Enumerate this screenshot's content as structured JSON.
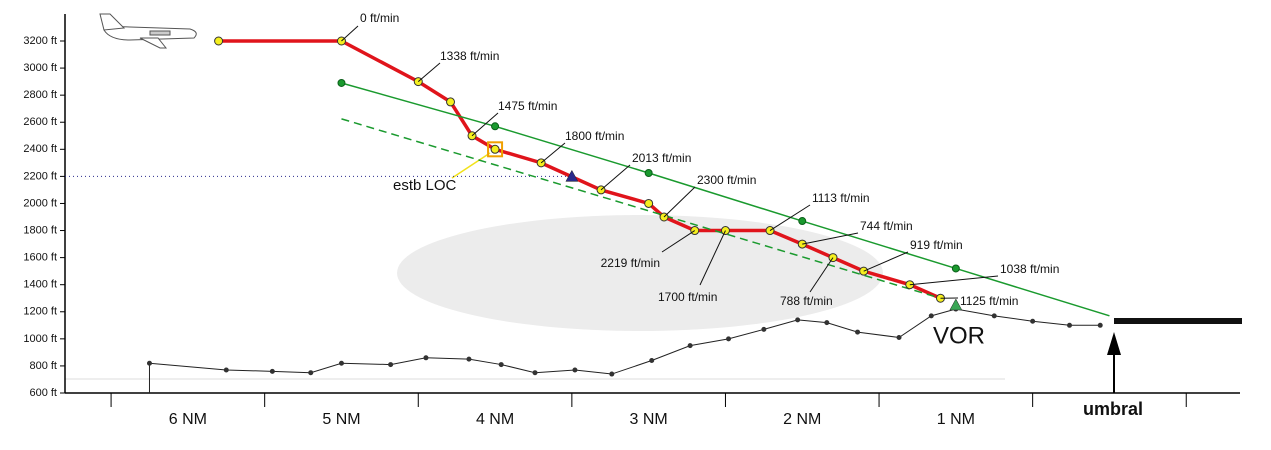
{
  "chart_data": {
    "type": "line",
    "xlim": [
      6.8,
      -0.85
    ],
    "ylim": [
      600,
      3200
    ],
    "yticks": [
      {
        "value": 600,
        "label": "600 ft"
      },
      {
        "value": 800,
        "label": "800 ft"
      },
      {
        "value": 1000,
        "label": "1000 ft"
      },
      {
        "value": 1200,
        "label": "1200 ft"
      },
      {
        "value": 1400,
        "label": "1400 ft"
      },
      {
        "value": 1600,
        "label": "1600 ft"
      },
      {
        "value": 1800,
        "label": "1800 ft"
      },
      {
        "value": 2000,
        "label": "2000 ft"
      },
      {
        "value": 2200,
        "label": "2200 ft"
      },
      {
        "value": 2400,
        "label": "2400 ft"
      },
      {
        "value": 2600,
        "label": "2600 ft"
      },
      {
        "value": 2800,
        "label": "2800 ft"
      },
      {
        "value": 3000,
        "label": "3000 ft"
      },
      {
        "value": 3200,
        "label": "3200 ft"
      }
    ],
    "xticks": [
      {
        "value": 6,
        "label": "6 NM"
      },
      {
        "value": 5,
        "label": "5 NM"
      },
      {
        "value": 4,
        "label": "4 NM"
      },
      {
        "value": 3,
        "label": "3 NM"
      },
      {
        "value": 2,
        "label": "2 NM"
      },
      {
        "value": 1,
        "label": "1 NM"
      }
    ],
    "xminorticks": [
      6.5,
      5.5,
      4.5,
      3.5,
      2.5,
      1.5,
      0.5,
      -0.5
    ],
    "series": [
      {
        "color": "#e0141b",
        "x": [
          5.8,
          5.0,
          4.5,
          4.29,
          4.15,
          4.0,
          3.7,
          3.31,
          3.0,
          2.9,
          2.7,
          2.5,
          2.21,
          2.0,
          1.8,
          1.6,
          1.3,
          1.1
        ],
        "values": [
          3200,
          3200,
          2900,
          2750,
          2500,
          2400,
          2300,
          2100,
          2000,
          1900,
          1800,
          1800,
          1800,
          1700,
          1600,
          1500,
          1400,
          1300
        ]
      },
      {
        "color": "#1a9a2e",
        "x": [
          5,
          4,
          3,
          2,
          1,
          0
        ],
        "values": [
          2890,
          2570,
          2225,
          1870,
          1520,
          1170
        ]
      },
      {
        "color": "#1a9a2e",
        "dashed": true,
        "x": [
          5.0,
          1.1
        ],
        "values": [
          2625,
          1300
        ]
      },
      {
        "color": "#222",
        "x": [
          6.25,
          5.75,
          5.45,
          5.2,
          5.0,
          4.68,
          4.45,
          4.17,
          3.96,
          3.74,
          3.48,
          3.24,
          2.98,
          2.73,
          2.48,
          2.25,
          2.03,
          1.84,
          1.64,
          1.37,
          1.16,
          1.0,
          0.75,
          0.5,
          0.26,
          0.06
        ],
        "values": [
          820,
          770,
          760,
          750,
          820,
          810,
          860,
          850,
          810,
          750,
          770,
          740,
          840,
          950,
          1000,
          1070,
          1140,
          1120,
          1050,
          1010,
          1170,
          1220,
          1170,
          1130,
          1100,
          1100
        ]
      }
    ],
    "loc_point": {
      "x": 3.5,
      "y": 2200,
      "color": "#2a2a8c"
    },
    "vor_point": {
      "x": 1.0,
      "y": 1250,
      "color": "#3aa655"
    },
    "annotations": [
      "0 ft/min",
      "1338 ft/min",
      "1475 ft/min",
      "1800 ft/min",
      "2013 ft/min",
      "2300 ft/min",
      "2219 ft/min",
      "1700 ft/min",
      "1113 ft/min",
      "744 ft/min",
      "788 ft/min",
      "919 ft/min",
      "1038 ft/min",
      "1125 ft/min"
    ],
    "loc_label": "estb LOC",
    "vor_label": "VOR",
    "threshold_label": "umbral"
  }
}
